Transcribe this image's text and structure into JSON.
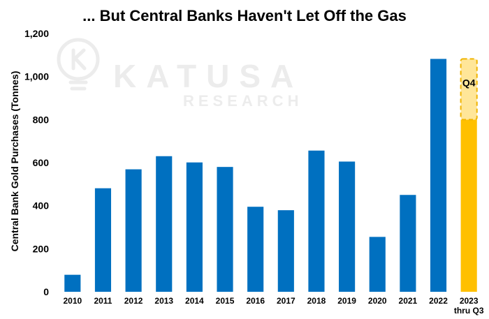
{
  "chart_data": {
    "type": "bar",
    "title": "... But Central Banks Haven't Let Off the Gas",
    "xlabel": "",
    "ylabel": "Central Bank Gold Purchases (Tonnes)",
    "ylim": [
      0,
      1200
    ],
    "yticks": [
      0,
      200,
      400,
      600,
      800,
      1000,
      1200
    ],
    "ytick_labels": [
      "0",
      "200",
      "400",
      "600",
      "800",
      "1,000",
      "1,200"
    ],
    "grid": false,
    "categories": [
      "2010",
      "2011",
      "2012",
      "2013",
      "2014",
      "2015",
      "2016",
      "2017",
      "2018",
      "2019",
      "2020",
      "2021",
      "2022",
      "2023"
    ],
    "category_sublabels": {
      "2023": "thru Q3"
    },
    "values": [
      79,
      481,
      569,
      630,
      601,
      580,
      395,
      379,
      656,
      605,
      255,
      450,
      1082,
      800
    ],
    "projection": {
      "category": "2023",
      "label": "Q4",
      "base": 800,
      "top": 1082
    },
    "colors": {
      "bar": "#0070c0",
      "highlight": "#ffc000",
      "projection_fill": "#ffe699",
      "projection_border": "#f0b400"
    }
  },
  "watermark": {
    "brand": "KATUSA",
    "sub": "RESEARCH",
    "logo": "lightbulb-k-icon"
  }
}
